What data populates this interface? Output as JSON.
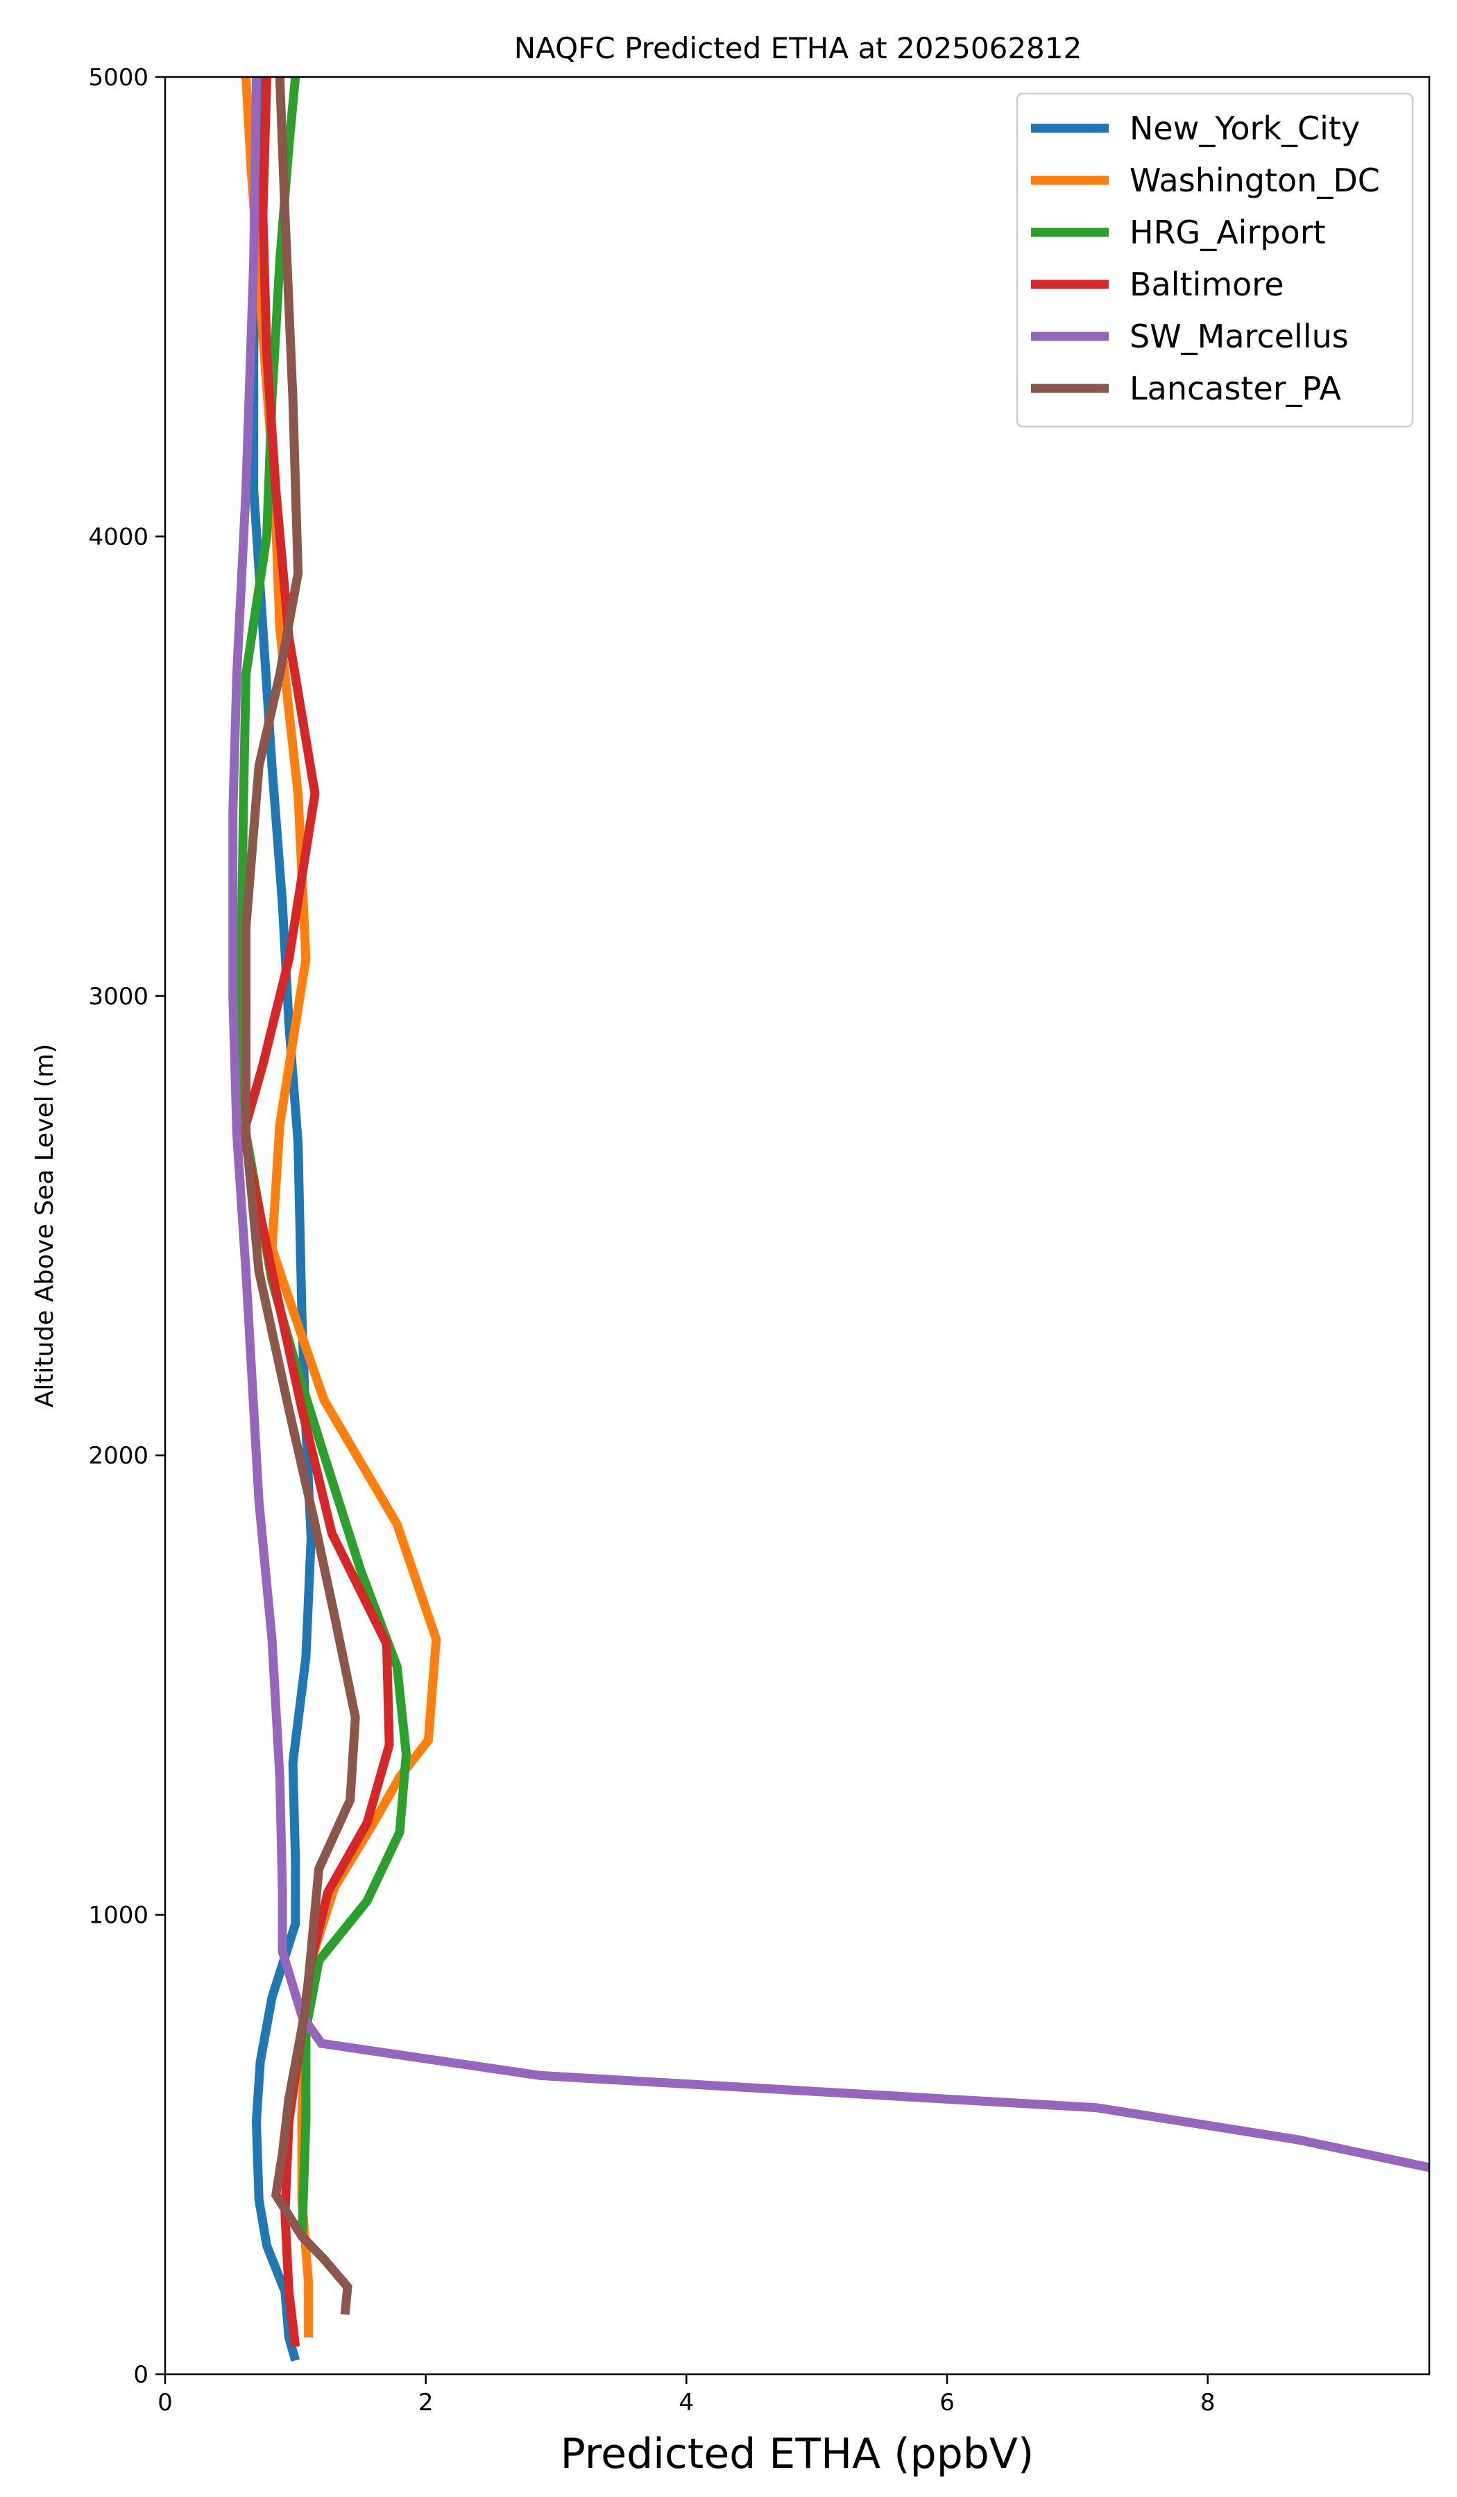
{
  "chart_data": {
    "type": "line",
    "title": "NAQFC Predicted ETHA at 2025062812",
    "xlabel": "Predicted ETHA (ppbV)",
    "ylabel": "Altitude Above Sea Level (m)",
    "xlim": [
      0,
      9.7
    ],
    "ylim": [
      0,
      5000
    ],
    "xticks": [
      0,
      2,
      4,
      6,
      8
    ],
    "yticks": [
      0,
      1000,
      2000,
      3000,
      4000,
      5000
    ],
    "grid": false,
    "legend": "top-right",
    "series": [
      {
        "name": "New_York_City",
        "color": "#1f77b4",
        "points": [
          [
            1.0,
            30
          ],
          [
            0.95,
            80
          ],
          [
            0.92,
            180
          ],
          [
            0.78,
            280
          ],
          [
            0.72,
            380
          ],
          [
            0.7,
            550
          ],
          [
            0.73,
            680
          ],
          [
            0.82,
            820
          ],
          [
            1.0,
            980
          ],
          [
            1.0,
            1120
          ],
          [
            0.98,
            1330
          ],
          [
            1.08,
            1560
          ],
          [
            1.12,
            1820
          ],
          [
            1.08,
            2060
          ],
          [
            1.05,
            2300
          ],
          [
            1.02,
            2680
          ],
          [
            0.95,
            2940
          ],
          [
            0.9,
            3200
          ],
          [
            0.82,
            3500
          ],
          [
            0.75,
            3800
          ],
          [
            0.68,
            4100
          ],
          [
            0.68,
            4400
          ],
          [
            0.7,
            4700
          ],
          [
            0.72,
            5000
          ]
        ]
      },
      {
        "name": "Washington_DC",
        "color": "#ff7f0e",
        "points": [
          [
            1.1,
            80
          ],
          [
            1.1,
            200
          ],
          [
            1.05,
            380
          ],
          [
            1.05,
            560
          ],
          [
            1.08,
            750
          ],
          [
            1.12,
            900
          ],
          [
            1.3,
            1060
          ],
          [
            1.6,
            1200
          ],
          [
            1.8,
            1300
          ],
          [
            2.02,
            1380
          ],
          [
            2.08,
            1600
          ],
          [
            1.78,
            1850
          ],
          [
            1.22,
            2120
          ],
          [
            1.0,
            2300
          ],
          [
            0.82,
            2450
          ],
          [
            0.88,
            2720
          ],
          [
            1.08,
            3080
          ],
          [
            1.02,
            3440
          ],
          [
            0.88,
            3800
          ],
          [
            0.84,
            4100
          ],
          [
            0.76,
            4400
          ],
          [
            0.66,
            4800
          ],
          [
            0.62,
            5000
          ]
        ]
      },
      {
        "name": "HRG_Airport",
        "color": "#2ca02c",
        "points": [
          [
            1.05,
            300
          ],
          [
            1.08,
            550
          ],
          [
            1.08,
            750
          ],
          [
            1.18,
            900
          ],
          [
            1.55,
            1030
          ],
          [
            1.8,
            1180
          ],
          [
            1.85,
            1350
          ],
          [
            1.78,
            1540
          ],
          [
            1.5,
            1750
          ],
          [
            1.22,
            2000
          ],
          [
            1.0,
            2200
          ],
          [
            0.82,
            2380
          ],
          [
            0.62,
            2700
          ],
          [
            0.58,
            3000
          ],
          [
            0.6,
            3400
          ],
          [
            0.62,
            3700
          ],
          [
            0.78,
            4000
          ],
          [
            0.82,
            4300
          ],
          [
            0.88,
            4600
          ],
          [
            0.95,
            4850
          ],
          [
            1.0,
            5000
          ]
        ]
      },
      {
        "name": "Baltimore",
        "color": "#d62728",
        "points": [
          [
            1.0,
            60
          ],
          [
            0.95,
            180
          ],
          [
            0.92,
            350
          ],
          [
            0.95,
            550
          ],
          [
            1.05,
            750
          ],
          [
            1.12,
            900
          ],
          [
            1.25,
            1050
          ],
          [
            1.55,
            1200
          ],
          [
            1.72,
            1370
          ],
          [
            1.7,
            1590
          ],
          [
            1.28,
            1830
          ],
          [
            1.05,
            2100
          ],
          [
            0.82,
            2400
          ],
          [
            0.6,
            2700
          ],
          [
            0.75,
            2850
          ],
          [
            0.95,
            3080
          ],
          [
            1.15,
            3440
          ],
          [
            0.95,
            3780
          ],
          [
            0.85,
            4100
          ],
          [
            0.78,
            4400
          ],
          [
            0.75,
            4700
          ],
          [
            0.78,
            5000
          ]
        ]
      },
      {
        "name": "SW_Marcellus",
        "color": "#9467bd",
        "points": [
          [
            9.7,
            450
          ],
          [
            8.7,
            510
          ],
          [
            7.15,
            580
          ],
          [
            2.88,
            650
          ],
          [
            1.2,
            720
          ],
          [
            1.05,
            780
          ],
          [
            0.9,
            920
          ],
          [
            0.9,
            1050
          ],
          [
            0.88,
            1300
          ],
          [
            0.82,
            1600
          ],
          [
            0.72,
            1900
          ],
          [
            0.62,
            2400
          ],
          [
            0.55,
            2700
          ],
          [
            0.52,
            3000
          ],
          [
            0.52,
            3400
          ],
          [
            0.55,
            3700
          ],
          [
            0.62,
            4100
          ],
          [
            0.68,
            4600
          ],
          [
            0.7,
            5000
          ]
        ]
      },
      {
        "name": "Lancaster_PA",
        "color": "#8c564b",
        "points": [
          [
            1.38,
            130
          ],
          [
            1.4,
            190
          ],
          [
            1.22,
            250
          ],
          [
            1.05,
            300
          ],
          [
            0.85,
            390
          ],
          [
            0.9,
            480
          ],
          [
            0.95,
            600
          ],
          [
            1.08,
            800
          ],
          [
            1.18,
            1100
          ],
          [
            1.42,
            1250
          ],
          [
            1.46,
            1430
          ],
          [
            1.3,
            1650
          ],
          [
            1.15,
            1850
          ],
          [
            0.95,
            2100
          ],
          [
            0.72,
            2400
          ],
          [
            0.62,
            2700
          ],
          [
            0.62,
            3150
          ],
          [
            0.72,
            3500
          ],
          [
            0.88,
            3700
          ],
          [
            1.02,
            3920
          ],
          [
            0.98,
            4300
          ],
          [
            0.92,
            4700
          ],
          [
            0.88,
            5000
          ]
        ]
      }
    ]
  }
}
